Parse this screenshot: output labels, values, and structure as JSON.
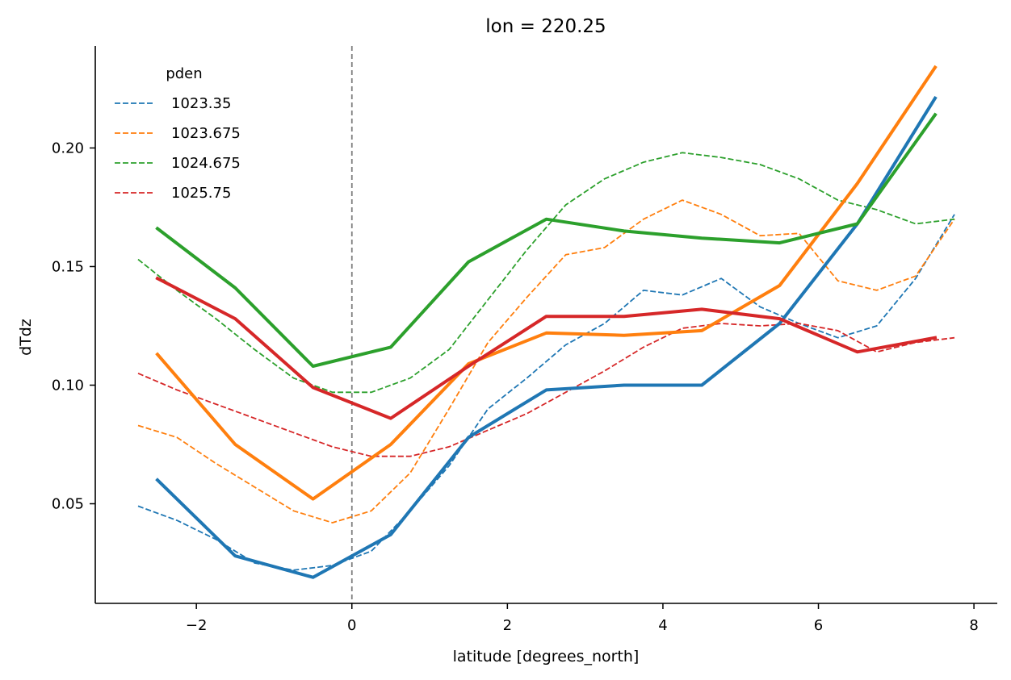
{
  "chart_data": {
    "type": "line",
    "title": "lon = 220.25",
    "xlabel": "latitude [degrees_north]",
    "ylabel": "dTdz",
    "xlim": [
      -3.3,
      8.3
    ],
    "ylim": [
      0.008,
      0.243
    ],
    "xticks": [
      -2,
      0,
      2,
      4,
      6,
      8
    ],
    "xtick_labels": [
      "−2",
      "0",
      "2",
      "4",
      "6",
      "8"
    ],
    "yticks": [
      0.05,
      0.1,
      0.15,
      0.2
    ],
    "ytick_labels": [
      "0.05",
      "0.10",
      "0.15",
      "0.20"
    ],
    "grid": false,
    "legend": {
      "title": "pden",
      "placement": "top-left"
    },
    "vline": {
      "x": 0,
      "color": "#808080",
      "style": "dashed"
    },
    "series": [
      {
        "name": "1023.35",
        "color": "#1f77b4",
        "style": "dashed",
        "x": [
          -2.75,
          -2.25,
          -1.75,
          -1.25,
          -0.75,
          -0.25,
          0.25,
          0.75,
          1.25,
          1.75,
          2.25,
          2.75,
          3.25,
          3.75,
          4.25,
          4.75,
          5.25,
          5.75,
          6.25,
          6.75,
          7.25,
          7.75
        ],
        "y": [
          0.049,
          0.043,
          0.035,
          0.025,
          0.022,
          0.024,
          0.03,
          0.047,
          0.066,
          0.09,
          0.103,
          0.117,
          0.126,
          0.14,
          0.138,
          0.145,
          0.133,
          0.126,
          0.12,
          0.125,
          0.145,
          0.172
        ]
      },
      {
        "name": "1023.675",
        "color": "#ff7f0e",
        "style": "dashed",
        "x": [
          -2.75,
          -2.25,
          -1.75,
          -1.25,
          -0.75,
          -0.25,
          0.25,
          0.75,
          1.25,
          1.75,
          2.25,
          2.75,
          3.25,
          3.75,
          4.25,
          4.75,
          5.25,
          5.75,
          6.25,
          6.75,
          7.25,
          7.75
        ],
        "y": [
          0.083,
          0.078,
          0.067,
          0.057,
          0.047,
          0.042,
          0.047,
          0.063,
          0.09,
          0.118,
          0.137,
          0.155,
          0.158,
          0.17,
          0.178,
          0.172,
          0.163,
          0.164,
          0.144,
          0.14,
          0.146,
          0.17
        ]
      },
      {
        "name": "1024.675",
        "color": "#2ca02c",
        "style": "dashed",
        "x": [
          -2.75,
          -2.25,
          -1.75,
          -1.25,
          -0.75,
          -0.25,
          0.25,
          0.75,
          1.25,
          1.75,
          2.25,
          2.75,
          3.25,
          3.75,
          4.25,
          4.75,
          5.25,
          5.75,
          6.25,
          6.75,
          7.25,
          7.75
        ],
        "y": [
          0.153,
          0.14,
          0.128,
          0.115,
          0.103,
          0.097,
          0.097,
          0.103,
          0.115,
          0.136,
          0.157,
          0.176,
          0.187,
          0.194,
          0.198,
          0.196,
          0.193,
          0.187,
          0.178,
          0.174,
          0.168,
          0.17
        ]
      },
      {
        "name": "1025.75",
        "color": "#d62728",
        "style": "dashed",
        "x": [
          -2.75,
          -2.25,
          -1.75,
          -1.25,
          -0.75,
          -0.25,
          0.25,
          0.75,
          1.25,
          1.75,
          2.25,
          2.75,
          3.25,
          3.75,
          4.25,
          4.75,
          5.25,
          5.75,
          6.25,
          6.75,
          7.25,
          7.75
        ],
        "y": [
          0.105,
          0.098,
          0.092,
          0.086,
          0.08,
          0.074,
          0.07,
          0.07,
          0.074,
          0.081,
          0.088,
          0.097,
          0.106,
          0.116,
          0.124,
          0.126,
          0.125,
          0.126,
          0.123,
          0.114,
          0.118,
          0.12
        ]
      },
      {
        "color": "#1f77b4",
        "style": "solid",
        "x": [
          -2.5,
          -1.5,
          -0.5,
          0.5,
          1.5,
          2.5,
          3.5,
          4.5,
          5.5,
          6.5,
          7.5
        ],
        "y": [
          0.06,
          0.028,
          0.019,
          0.037,
          0.078,
          0.098,
          0.1,
          0.1,
          0.126,
          0.168,
          0.221
        ]
      },
      {
        "color": "#ff7f0e",
        "style": "solid",
        "x": [
          -2.5,
          -1.5,
          -0.5,
          0.5,
          1.5,
          2.5,
          3.5,
          4.5,
          5.5,
          6.5,
          7.5
        ],
        "y": [
          0.113,
          0.075,
          0.052,
          0.075,
          0.109,
          0.122,
          0.121,
          0.123,
          0.142,
          0.185,
          0.234
        ]
      },
      {
        "color": "#2ca02c",
        "style": "solid",
        "x": [
          -2.5,
          -1.5,
          -0.5,
          0.5,
          1.5,
          2.5,
          3.5,
          4.5,
          5.5,
          6.5,
          7.5
        ],
        "y": [
          0.166,
          0.141,
          0.108,
          0.116,
          0.152,
          0.17,
          0.165,
          0.162,
          0.16,
          0.168,
          0.214
        ]
      },
      {
        "color": "#d62728",
        "style": "solid",
        "x": [
          -2.5,
          -1.5,
          -0.5,
          0.5,
          1.5,
          2.5,
          3.5,
          4.5,
          5.5,
          6.5,
          7.5
        ],
        "y": [
          0.145,
          0.128,
          0.099,
          0.086,
          0.108,
          0.129,
          0.129,
          0.132,
          0.128,
          0.114,
          0.12
        ]
      }
    ]
  }
}
